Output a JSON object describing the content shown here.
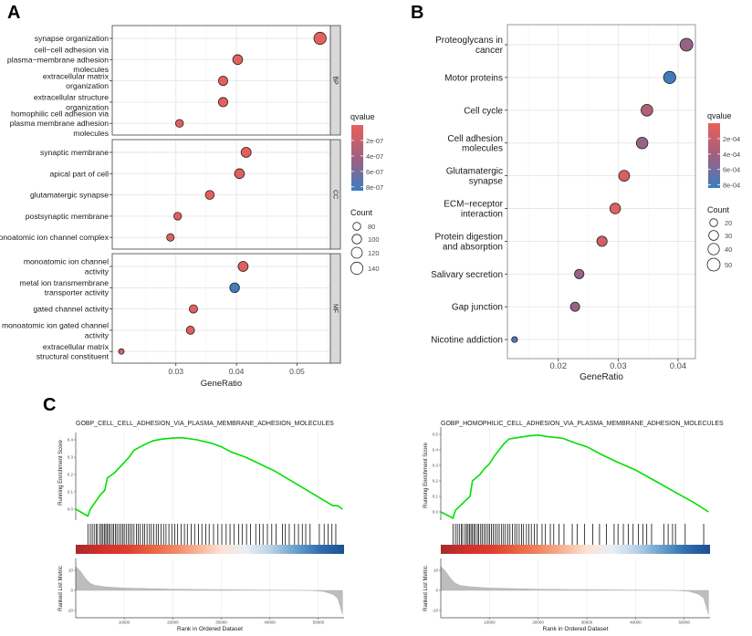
{
  "panel_letters": [
    "A",
    "B",
    "C"
  ],
  "chart_data": [
    {
      "panel": "A",
      "type": "scatter",
      "xlabel": "GeneRatio",
      "xlim": [
        0.0195,
        0.0555
      ],
      "xticks": [
        0.03,
        0.04,
        0.05
      ],
      "xtick_labels": [
        "0.03",
        "0.04",
        "0.05"
      ],
      "grid": true,
      "facets": [
        {
          "name": "BP",
          "terms": [
            {
              "label_lines": [
                "synapse organization"
              ],
              "gene_ratio": 0.0538,
              "count": 140,
              "qvalue": 1e-08
            },
            {
              "label_lines": [
                "cell−cell adhesion via",
                "plasma−membrane adhesion",
                "molecules"
              ],
              "gene_ratio": 0.0402,
              "count": 105,
              "qvalue": 3e-08
            },
            {
              "label_lines": [
                "extracellular matrix",
                "organization"
              ],
              "gene_ratio": 0.0378,
              "count": 98,
              "qvalue": 2e-08
            },
            {
              "label_lines": [
                "extracellular structure",
                "organization"
              ],
              "gene_ratio": 0.0378,
              "count": 98,
              "qvalue": 2e-08
            },
            {
              "label_lines": [
                "homophilic cell adhesion via",
                "plasma membrane adhesion",
                "molecules"
              ],
              "gene_ratio": 0.0306,
              "count": 80,
              "qvalue": 5e-08
            }
          ]
        },
        {
          "name": "CC",
          "terms": [
            {
              "label_lines": [
                "synaptic membrane"
              ],
              "gene_ratio": 0.0416,
              "count": 108,
              "qvalue": 2e-08
            },
            {
              "label_lines": [
                "apical part of cell"
              ],
              "gene_ratio": 0.0405,
              "count": 105,
              "qvalue": 4e-08
            },
            {
              "label_lines": [
                "glutamatergic synapse"
              ],
              "gene_ratio": 0.0356,
              "count": 93,
              "qvalue": 3e-08
            },
            {
              "label_lines": [
                "postsynaptic membrane"
              ],
              "gene_ratio": 0.0303,
              "count": 79,
              "qvalue": 4e-08
            },
            {
              "label_lines": [
                "monoatomic ion channel complex"
              ],
              "gene_ratio": 0.0291,
              "count": 76,
              "qvalue": 5e-08
            }
          ]
        },
        {
          "name": "MF",
          "terms": [
            {
              "label_lines": [
                "monoatomic ion channel",
                "activity"
              ],
              "gene_ratio": 0.0411,
              "count": 107,
              "qvalue": 4e-08
            },
            {
              "label_lines": [
                "metal ion transmembrane",
                "transporter activity"
              ],
              "gene_ratio": 0.0397,
              "count": 103,
              "qvalue": 8.3e-07
            },
            {
              "label_lines": [
                "gated channel activity"
              ],
              "gene_ratio": 0.0329,
              "count": 86,
              "qvalue": 5e-08
            },
            {
              "label_lines": [
                "monoatomic ion gated channel",
                "activity"
              ],
              "gene_ratio": 0.0324,
              "count": 84,
              "qvalue": 5e-08
            },
            {
              "label_lines": [
                "extracellular matrix",
                "structural constituent"
              ],
              "gene_ratio": 0.021,
              "count": 55,
              "qvalue": 8e-08
            }
          ]
        }
      ],
      "legend": {
        "color_title": "qvalue",
        "color_max": 8.5e-07,
        "color_ticks": [
          {
            "label": "2e-07",
            "value": 2e-07
          },
          {
            "label": "4e-07",
            "value": 4e-07
          },
          {
            "label": "6e-07",
            "value": 6e-07
          },
          {
            "label": "8e-07",
            "value": 8e-07
          }
        ],
        "size_title": "Count",
        "size_ticks": [
          {
            "label": "80",
            "value": 80
          },
          {
            "label": "100",
            "value": 100
          },
          {
            "label": "120",
            "value": 120
          },
          {
            "label": "140",
            "value": 140
          }
        ],
        "placement": "right"
      },
      "colors": {
        "low_q": "#e8605a",
        "mid_q": "#a0607e",
        "high_q": "#3a7dc0"
      }
    },
    {
      "panel": "B",
      "type": "scatter",
      "xlabel": "GeneRatio",
      "xlim": [
        0.0115,
        0.0429
      ],
      "xticks": [
        0.02,
        0.03,
        0.04
      ],
      "xtick_labels": [
        "0.02",
        "0.03",
        "0.04"
      ],
      "grid": true,
      "terms": [
        {
          "label_lines": [
            "Proteoglycans in",
            "cancer"
          ],
          "gene_ratio": 0.0414,
          "count": 50,
          "qvalue": 0.00046
        },
        {
          "label_lines": [
            "Motor proteins"
          ],
          "gene_ratio": 0.0386,
          "count": 46,
          "qvalue": 0.00082
        },
        {
          "label_lines": [
            "Cell cycle"
          ],
          "gene_ratio": 0.0348,
          "count": 42,
          "qvalue": 0.00032
        },
        {
          "label_lines": [
            "Cell adhesion",
            "molecules"
          ],
          "gene_ratio": 0.034,
          "count": 41,
          "qvalue": 0.00046
        },
        {
          "label_lines": [
            "Glutamatergic",
            "synapse"
          ],
          "gene_ratio": 0.031,
          "count": 37,
          "qvalue": 0.0001
        },
        {
          "label_lines": [
            "ECM−receptor",
            "interaction"
          ],
          "gene_ratio": 0.0295,
          "count": 35,
          "qvalue": 5e-05
        },
        {
          "label_lines": [
            "Protein digestion",
            "and absorption"
          ],
          "gene_ratio": 0.0273,
          "count": 33,
          "qvalue": 0.00016
        },
        {
          "label_lines": [
            "Salivary secretion"
          ],
          "gene_ratio": 0.0235,
          "count": 28,
          "qvalue": 0.00045
        },
        {
          "label_lines": [
            "Gap junction"
          ],
          "gene_ratio": 0.0228,
          "count": 27,
          "qvalue": 0.00045
        },
        {
          "label_lines": [
            "Nicotine addiction"
          ],
          "gene_ratio": 0.0127,
          "count": 12,
          "qvalue": 0.00076
        }
      ],
      "legend": {
        "color_title": "qvalue",
        "color_max": 0.00084,
        "color_ticks": [
          {
            "label": "2e-04",
            "value": 0.0002
          },
          {
            "label": "4e-04",
            "value": 0.0004
          },
          {
            "label": "6e-04",
            "value": 0.0006
          },
          {
            "label": "8e-04",
            "value": 0.0008
          }
        ],
        "size_title": "Count",
        "size_ticks": [
          {
            "label": "20",
            "value": 20
          },
          {
            "label": "30",
            "value": 30
          },
          {
            "label": "40",
            "value": 40
          },
          {
            "label": "50",
            "value": 50
          }
        ],
        "placement": "right"
      },
      "colors": {
        "low_q": "#e8605a",
        "mid_q": "#a0607e",
        "high_q": "#3a7dc0"
      }
    },
    {
      "panel": "C",
      "type": "line",
      "title": "GOBP_CELL_CELL_ADHESION_VIA_PLASMA_MEMBRANE_ADHESION_MOLECULES",
      "ylabel_es": "Running Enrichment Score",
      "ylabel_metric": "Ranked List Metric",
      "xlabel": "Rank in Ordered Dataset",
      "xlim": [
        0,
        55300
      ],
      "xticks": [
        10000,
        20000,
        30000,
        40000,
        50000
      ],
      "xtick_labels": [
        "10000",
        "20000",
        "30000",
        "40000",
        "50000"
      ],
      "es_ticks": [
        0,
        0.1,
        0.2,
        0.3,
        0.4
      ],
      "es_tick_labels": [
        "0.0",
        "0.1",
        "0.2",
        "0.3",
        "0.4"
      ],
      "metric_ticks": [
        10,
        0,
        -10
      ],
      "metric_tick_labels": [
        "10",
        "0",
        "-10"
      ],
      "line_color": "#00e000",
      "running_es": [
        [
          0,
          0
        ],
        [
          2500,
          -0.04
        ],
        [
          3000,
          0.0
        ],
        [
          4000,
          0.04
        ],
        [
          5000,
          0.08
        ],
        [
          6000,
          0.11
        ],
        [
          6500,
          0.18
        ],
        [
          8000,
          0.21
        ],
        [
          9000,
          0.24
        ],
        [
          10000,
          0.27
        ],
        [
          11000,
          0.3
        ],
        [
          12000,
          0.34
        ],
        [
          14000,
          0.37
        ],
        [
          16000,
          0.395
        ],
        [
          18000,
          0.405
        ],
        [
          20000,
          0.41
        ],
        [
          22000,
          0.412
        ],
        [
          25000,
          0.4
        ],
        [
          28000,
          0.38
        ],
        [
          30000,
          0.36
        ],
        [
          32000,
          0.33
        ],
        [
          35000,
          0.3
        ],
        [
          38000,
          0.26
        ],
        [
          41000,
          0.22
        ],
        [
          44000,
          0.17
        ],
        [
          47000,
          0.12
        ],
        [
          50000,
          0.07
        ],
        [
          53000,
          0.02
        ],
        [
          54000,
          0.02
        ],
        [
          55000,
          0.0
        ]
      ],
      "hit_ranks": [
        2500,
        3000,
        3400,
        3800,
        4200,
        4500,
        5000,
        5300,
        5600,
        5900,
        6200,
        6500,
        6800,
        7100,
        7500,
        7800,
        8200,
        8500,
        8900,
        9300,
        9700,
        10000,
        10400,
        10800,
        11200,
        11600,
        12000,
        12500,
        12900,
        13300,
        13800,
        14200,
        14700,
        15200,
        15600,
        16100,
        16600,
        17000,
        17600,
        18100,
        18600,
        19200,
        19800,
        20400,
        21000,
        21700,
        22400,
        23000,
        23800,
        24500,
        25300,
        26000,
        26800,
        27500,
        28400,
        29300,
        30100,
        31000,
        31800,
        32600,
        33600,
        34300,
        35200,
        36000,
        37100,
        37900,
        38600,
        39500,
        40400,
        41300,
        42600,
        43200,
        44000,
        45100,
        45900,
        46700,
        47400,
        48300,
        50200,
        51200,
        52000,
        52800,
        53600
      ],
      "ranked_metric": [
        [
          0,
          12
        ],
        [
          1000,
          9.5
        ],
        [
          2000,
          6
        ],
        [
          3000,
          3.5
        ],
        [
          4000,
          2.5
        ],
        [
          6000,
          1.8
        ],
        [
          10000,
          1.2
        ],
        [
          20000,
          0.6
        ],
        [
          30000,
          0.35
        ],
        [
          40000,
          0.15
        ],
        [
          48000,
          0
        ],
        [
          51000,
          -0.5
        ],
        [
          53000,
          -2
        ],
        [
          54000,
          -4
        ],
        [
          55000,
          -12
        ]
      ],
      "heatmap_colors": [
        "#a52a2a",
        "#d32f2a",
        "#dc3b2e",
        "#e8603f",
        "#f08462",
        "#f6b496",
        "#fbe4d6",
        "#e8eef6",
        "#b8d2e6",
        "#6aa0cc",
        "#2f6fb0",
        "#1b4f91"
      ]
    },
    {
      "panel": "C",
      "type": "line",
      "title": "GOBP_HOMOPHILIC_CELL_ADHESION_VIA_PLASMA_MEMBRANE_ADHESION_MOLECULES",
      "ylabel_es": "Running Enrichment Score",
      "ylabel_metric": "Ranked List Metric",
      "xlabel": "Rank in Ordered Dataset",
      "xlim": [
        0,
        55300
      ],
      "xticks": [
        10000,
        20000,
        30000,
        40000,
        50000
      ],
      "xtick_labels": [
        "10000",
        "20000",
        "30000",
        "40000",
        "50000"
      ],
      "es_ticks": [
        0,
        0.1,
        0.2,
        0.3,
        0.4,
        0.5
      ],
      "es_tick_labels": [
        "0.0",
        "0.1",
        "0.2",
        "0.3",
        "0.4",
        "0.5"
      ],
      "metric_ticks": [
        10,
        0,
        -10
      ],
      "metric_tick_labels": [
        "10",
        "0",
        "-10"
      ],
      "line_color": "#00e000",
      "running_es": [
        [
          0,
          0
        ],
        [
          2500,
          -0.04
        ],
        [
          3000,
          0.01
        ],
        [
          4000,
          0.04
        ],
        [
          5000,
          0.07
        ],
        [
          6000,
          0.1
        ],
        [
          6500,
          0.2
        ],
        [
          8000,
          0.24
        ],
        [
          9000,
          0.28
        ],
        [
          10000,
          0.31
        ],
        [
          11000,
          0.36
        ],
        [
          12000,
          0.4
        ],
        [
          13000,
          0.44
        ],
        [
          14000,
          0.47
        ],
        [
          16000,
          0.48
        ],
        [
          18000,
          0.49
        ],
        [
          20000,
          0.495
        ],
        [
          22000,
          0.485
        ],
        [
          25000,
          0.475
        ],
        [
          28000,
          0.44
        ],
        [
          30000,
          0.42
        ],
        [
          33000,
          0.37
        ],
        [
          36000,
          0.325
        ],
        [
          40000,
          0.27
        ],
        [
          44000,
          0.2
        ],
        [
          48000,
          0.13
        ],
        [
          52000,
          0.06
        ],
        [
          55000,
          0.0
        ]
      ],
      "hit_ranks": [
        2500,
        3000,
        3400,
        3800,
        4200,
        4500,
        5000,
        5300,
        5600,
        5900,
        6200,
        6500,
        6800,
        7100,
        7500,
        7800,
        8200,
        8500,
        8900,
        9300,
        9700,
        10000,
        10400,
        10800,
        11200,
        11600,
        12000,
        12500,
        12900,
        13300,
        13800,
        14200,
        14700,
        15200,
        15600,
        16100,
        16600,
        17000,
        17600,
        18100,
        18600,
        19200,
        19800,
        20800,
        21500,
        22500,
        23200,
        24300,
        25300,
        27000,
        28000,
        29500,
        31200,
        32600,
        34000,
        35600,
        36400,
        37500,
        38500,
        39500,
        40600,
        41500,
        42300,
        43300,
        45800,
        46700,
        47600,
        48200,
        50200,
        54000
      ],
      "ranked_metric": [
        [
          0,
          12
        ],
        [
          1000,
          9.5
        ],
        [
          2000,
          6
        ],
        [
          3000,
          3.5
        ],
        [
          4000,
          2.5
        ],
        [
          6000,
          1.8
        ],
        [
          10000,
          1.2
        ],
        [
          20000,
          0.6
        ],
        [
          30000,
          0.35
        ],
        [
          40000,
          0.15
        ],
        [
          48000,
          0
        ],
        [
          51000,
          -0.5
        ],
        [
          53000,
          -2
        ],
        [
          54000,
          -4
        ],
        [
          55000,
          -12
        ]
      ],
      "heatmap_colors": [
        "#a52a2a",
        "#d32f2a",
        "#dc3b2e",
        "#e8603f",
        "#f08462",
        "#f6b496",
        "#fbe4d6",
        "#e8eef6",
        "#b8d2e6",
        "#6aa0cc",
        "#2f6fb0",
        "#1b4f91"
      ]
    }
  ]
}
